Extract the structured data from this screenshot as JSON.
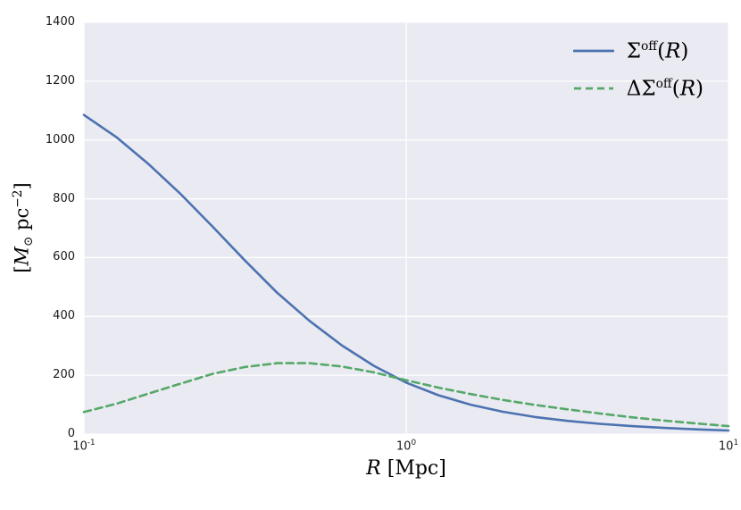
{
  "chart_data": {
    "type": "line",
    "title": "",
    "x_scale": "log",
    "xlim": [
      0.1,
      10
    ],
    "ylim": [
      0,
      1400
    ],
    "grid": true,
    "background": "#EAEAF2",
    "grid_color": "#FFFFFF",
    "legend_position": "upper right",
    "xlabel": {
      "var": "R",
      "unit": " [Mpc]"
    },
    "ylabel": {
      "open": "[",
      "mass": "M",
      "sun": "⊙",
      "unit": " pc",
      "exp": "−2",
      "close": "]"
    },
    "yticks": [
      0,
      200,
      400,
      600,
      800,
      1000,
      1200,
      1400
    ],
    "xticks": [
      {
        "base": "10",
        "exp": "-1",
        "value": 0.1
      },
      {
        "base": "10",
        "exp": "0",
        "value": 1
      },
      {
        "base": "10",
        "exp": "1",
        "value": 10
      }
    ],
    "x": [
      0.1,
      0.126,
      0.158,
      0.2,
      0.251,
      0.316,
      0.398,
      0.501,
      0.631,
      0.794,
      1.0,
      1.259,
      1.585,
      1.995,
      2.512,
      3.162,
      3.981,
      5.012,
      6.31,
      7.943,
      10.0
    ],
    "series": [
      {
        "name": "sigma-off",
        "label": {
          "symbol": "Σ",
          "sup": "off",
          "open": "(",
          "arg": "R",
          "close": ")"
        },
        "color": "#4C72B0",
        "style": "solid",
        "values": [
          1085,
          1010,
          920,
          815,
          705,
          590,
          480,
          385,
          302,
          232,
          175,
          132,
          100,
          76,
          58,
          45,
          35,
          27,
          21,
          16,
          12
        ]
      },
      {
        "name": "delta-sigma-off",
        "label": {
          "symbol": "ΔΣ",
          "sup": "off",
          "open": "(",
          "arg": "R",
          "close": ")"
        },
        "color": "#55A868",
        "style": "dashed",
        "values": [
          75,
          103,
          137,
          172,
          205,
          228,
          241,
          241,
          230,
          210,
          183,
          158,
          136,
          116,
          99,
          84,
          70,
          57,
          46,
          36,
          27
        ]
      }
    ]
  }
}
